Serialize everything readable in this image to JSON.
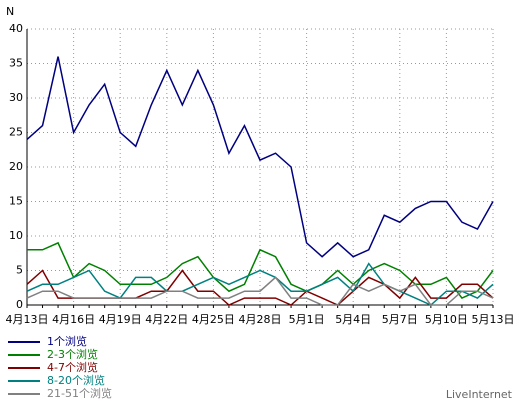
{
  "chart_data": {
    "type": "line",
    "y_label": "N",
    "footer": "LiveInternet",
    "categories": [
      "4月13日",
      null,
      null,
      "4月16日",
      null,
      null,
      "4月19日",
      null,
      null,
      "4月22日",
      null,
      null,
      "4月25日",
      null,
      null,
      "4月28日",
      null,
      null,
      "5月1日",
      null,
      null,
      "5月4日",
      null,
      null,
      "5月7日",
      null,
      null,
      "5月10日",
      null,
      null,
      "5月13日"
    ],
    "ylim": [
      0,
      40
    ],
    "yticks": [
      0,
      5,
      10,
      15,
      20,
      25,
      30,
      35,
      40
    ],
    "grid": true,
    "series": [
      {
        "name": "1个浏览",
        "color": "#000080",
        "values": [
          24,
          26,
          36,
          25,
          29,
          32,
          25,
          23,
          29,
          34,
          29,
          34,
          29,
          22,
          26,
          21,
          22,
          20,
          9,
          7,
          9,
          7,
          8,
          13,
          12,
          14,
          15,
          15,
          12,
          11,
          15
        ]
      },
      {
        "name": "2-3个浏览",
        "color": "#008000",
        "values": [
          8,
          8,
          9,
          4,
          6,
          5,
          3,
          3,
          3,
          4,
          6,
          7,
          4,
          2,
          3,
          8,
          7,
          3,
          2,
          3,
          5,
          3,
          5,
          6,
          5,
          3,
          3,
          4,
          1,
          2,
          5
        ]
      },
      {
        "name": "4-7个浏览",
        "color": "#800000",
        "values": [
          3,
          5,
          1,
          1,
          1,
          1,
          1,
          1,
          2,
          2,
          5,
          2,
          2,
          0,
          1,
          1,
          1,
          0,
          2,
          1,
          0,
          2,
          4,
          3,
          1,
          4,
          1,
          1,
          3,
          3,
          1
        ]
      },
      {
        "name": "8-20个浏览",
        "color": "#008080",
        "values": [
          2,
          3,
          3,
          4,
          5,
          2,
          1,
          4,
          4,
          2,
          2,
          3,
          4,
          3,
          4,
          5,
          4,
          2,
          2,
          3,
          4,
          2,
          6,
          3,
          2,
          1,
          0,
          2,
          2,
          1,
          3
        ]
      },
      {
        "name": "21-51个浏览",
        "color": "#808080",
        "values": [
          1,
          2,
          2,
          1,
          1,
          1,
          1,
          1,
          1,
          2,
          2,
          1,
          1,
          1,
          2,
          2,
          4,
          1,
          1,
          0,
          0,
          3,
          2,
          3,
          2,
          3,
          0,
          0,
          2,
          2,
          1
        ]
      }
    ]
  }
}
